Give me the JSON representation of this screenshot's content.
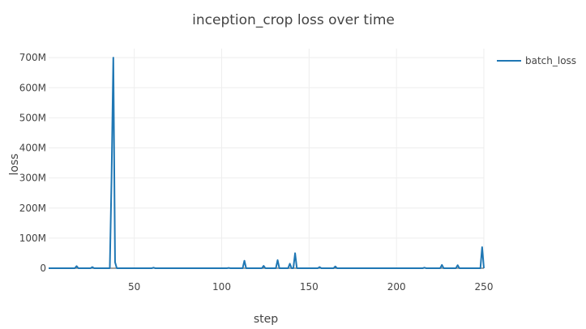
{
  "chart_data": {
    "type": "line",
    "title": "inception_crop loss over time",
    "xlabel": "step",
    "ylabel": "loss",
    "xlim": [
      1,
      250
    ],
    "ylim": [
      0,
      730000000
    ],
    "x_ticks": [
      50,
      100,
      150,
      200,
      250
    ],
    "y_ticks": [
      0,
      100000000,
      200000000,
      300000000,
      400000000,
      500000000,
      600000000,
      700000000
    ],
    "y_tick_labels": [
      "0",
      "100M",
      "200M",
      "300M",
      "400M",
      "500M",
      "600M",
      "700M"
    ],
    "grid": true,
    "legend": {
      "position": "top-right"
    },
    "series": [
      {
        "name": "batch_loss",
        "color": "#1f77b4",
        "points": [
          [
            1,
            0
          ],
          [
            16,
            0
          ],
          [
            17,
            7000000
          ],
          [
            18,
            0
          ],
          [
            25,
            0
          ],
          [
            26,
            4000000
          ],
          [
            27,
            0
          ],
          [
            36,
            0
          ],
          [
            37,
            300000000
          ],
          [
            38,
            700000000
          ],
          [
            39,
            20000000
          ],
          [
            40,
            0
          ],
          [
            60,
            0
          ],
          [
            61,
            2000000
          ],
          [
            62,
            0
          ],
          [
            103,
            0
          ],
          [
            104,
            1000000
          ],
          [
            105,
            0
          ],
          [
            112,
            0
          ],
          [
            113,
            25000000
          ],
          [
            114,
            0
          ],
          [
            123,
            0
          ],
          [
            124,
            8000000
          ],
          [
            125,
            0
          ],
          [
            131,
            0
          ],
          [
            132,
            27000000
          ],
          [
            133,
            0
          ],
          [
            138,
            0
          ],
          [
            139,
            15000000
          ],
          [
            140,
            0
          ],
          [
            141,
            0
          ],
          [
            142,
            50000000
          ],
          [
            143,
            0
          ],
          [
            155,
            0
          ],
          [
            156,
            4000000
          ],
          [
            157,
            0
          ],
          [
            164,
            0
          ],
          [
            165,
            6000000
          ],
          [
            166,
            0
          ],
          [
            215,
            0
          ],
          [
            216,
            2000000
          ],
          [
            217,
            0
          ],
          [
            225,
            0
          ],
          [
            226,
            11000000
          ],
          [
            227,
            0
          ],
          [
            234,
            0
          ],
          [
            235,
            10000000
          ],
          [
            236,
            0
          ],
          [
            248,
            0
          ],
          [
            249,
            70000000
          ],
          [
            250,
            0
          ]
        ]
      }
    ]
  }
}
